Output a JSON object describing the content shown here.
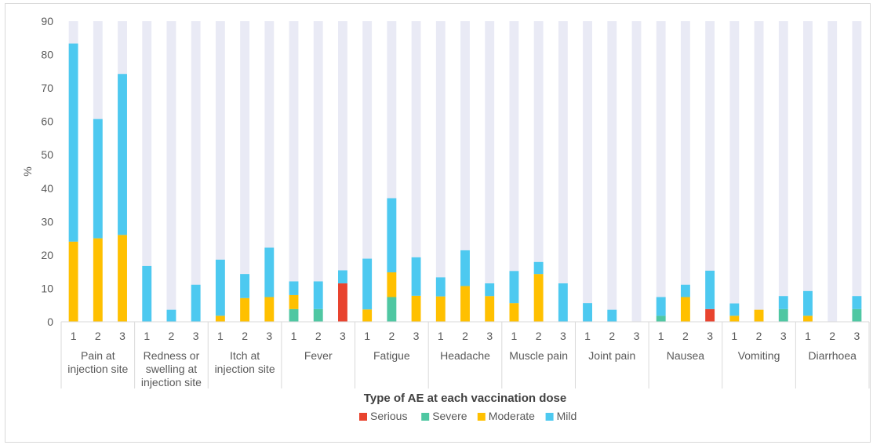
{
  "chart_data": {
    "type": "bar",
    "stacked": true,
    "title": "",
    "xlabel": "Type of AE at each vaccination dose",
    "ylabel": "%",
    "ylim": [
      0,
      90
    ],
    "yticks": [
      0,
      10,
      20,
      30,
      40,
      50,
      60,
      70,
      80,
      90
    ],
    "grid": false,
    "background_bar_color": "#e9eaf5",
    "legend_position": "bottom",
    "groups": [
      {
        "label": "Pain at injection site",
        "lines": [
          "Pain at",
          "injection site"
        ],
        "doses": [
          "1",
          "2",
          "3"
        ]
      },
      {
        "label": "Redness or swelling at injection site",
        "lines": [
          "Redness or",
          "swelling at",
          "injection site"
        ],
        "doses": [
          "1",
          "2",
          "3"
        ]
      },
      {
        "label": "Itch at injection site",
        "lines": [
          "Itch at",
          "injection site"
        ],
        "doses": [
          "1",
          "2",
          "3"
        ]
      },
      {
        "label": "Fever",
        "lines": [
          "Fever"
        ],
        "doses": [
          "1",
          "2",
          "3"
        ]
      },
      {
        "label": "Fatigue",
        "lines": [
          "Fatigue"
        ],
        "doses": [
          "1",
          "2",
          "3"
        ]
      },
      {
        "label": "Headache",
        "lines": [
          "Headache"
        ],
        "doses": [
          "1",
          "2",
          "3"
        ]
      },
      {
        "label": "Muscle pain",
        "lines": [
          "Muscle pain"
        ],
        "doses": [
          "1",
          "2",
          "3"
        ]
      },
      {
        "label": "Joint pain",
        "lines": [
          "Joint pain"
        ],
        "doses": [
          "1",
          "2",
          "3"
        ]
      },
      {
        "label": "Nausea",
        "lines": [
          "Nausea"
        ],
        "doses": [
          "1",
          "2",
          "3"
        ]
      },
      {
        "label": "Vomiting",
        "lines": [
          "Vomiting"
        ],
        "doses": [
          "1",
          "2",
          "3"
        ]
      },
      {
        "label": "Diarrhoea",
        "lines": [
          "Diarrhoea"
        ],
        "doses": [
          "1",
          "2",
          "3"
        ]
      }
    ],
    "series": [
      {
        "name": "Serious",
        "color": "#e8432e",
        "values": [
          0,
          0,
          0,
          0,
          0,
          0,
          0,
          0,
          0,
          0,
          0,
          11.5,
          0,
          0,
          0,
          0,
          0,
          0,
          0,
          0,
          0,
          0,
          0,
          0,
          0,
          0,
          3.8,
          0,
          0,
          0,
          0,
          0,
          0
        ]
      },
      {
        "name": "Severe",
        "color": "#4fc7a2",
        "values": [
          0,
          0,
          0,
          0,
          0,
          0,
          0,
          0,
          0,
          3.8,
          3.8,
          0,
          0,
          7.4,
          0,
          0,
          0,
          0,
          0,
          0,
          0,
          0,
          0,
          0,
          1.8,
          0,
          0,
          0,
          0,
          3.8,
          0,
          0,
          3.8
        ]
      },
      {
        "name": "Moderate",
        "color": "#ffc000",
        "values": [
          24,
          25,
          26,
          0,
          0,
          0,
          1.8,
          7.1,
          7.4,
          4.2,
          0,
          0,
          3.7,
          7.4,
          7.8,
          7.6,
          10.7,
          7.7,
          5.6,
          14.3,
          0,
          0,
          0,
          0,
          0,
          7.4,
          0,
          1.8,
          3.6,
          0,
          1.8,
          0,
          0
        ]
      },
      {
        "name": "Mild",
        "color": "#4dc9f0",
        "values": [
          59.3,
          35.7,
          48.2,
          16.7,
          3.6,
          11.1,
          16.8,
          7.2,
          14.8,
          4.1,
          8.3,
          3.9,
          15.2,
          22.2,
          11.5,
          5.7,
          10.7,
          3.8,
          9.6,
          3.6,
          11.5,
          5.6,
          3.6,
          0,
          5.6,
          3.7,
          11.5,
          3.7,
          0,
          3.9,
          7.4,
          0,
          3.9
        ]
      }
    ]
  }
}
